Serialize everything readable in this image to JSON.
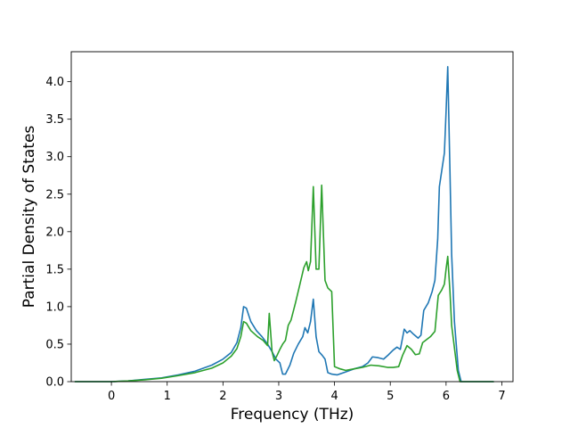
{
  "chart_data": {
    "type": "line",
    "title": "",
    "xlabel": "Frequency (THz)",
    "ylabel": "Partial Density of States",
    "xlim": [
      -0.72,
      7.2
    ],
    "ylim": [
      0.0,
      4.4
    ],
    "xticks": [
      0,
      1,
      2,
      3,
      4,
      5,
      6,
      7
    ],
    "xtick_labels": [
      "0",
      "1",
      "2",
      "3",
      "4",
      "5",
      "6",
      "7"
    ],
    "yticks": [
      0.0,
      0.5,
      1.0,
      1.5,
      2.0,
      2.5,
      3.0,
      3.5,
      4.0
    ],
    "ytick_labels": [
      "0.0",
      "0.5",
      "1.0",
      "1.5",
      "2.0",
      "2.5",
      "3.0",
      "3.5",
      "4.0"
    ],
    "grid": false,
    "series": [
      {
        "color": "#1f77b4",
        "points": [
          [
            -0.65,
            0.0
          ],
          [
            0.0,
            0.0
          ],
          [
            0.3,
            0.01
          ],
          [
            0.6,
            0.03
          ],
          [
            0.9,
            0.05
          ],
          [
            1.2,
            0.09
          ],
          [
            1.5,
            0.14
          ],
          [
            1.8,
            0.22
          ],
          [
            2.0,
            0.3
          ],
          [
            2.15,
            0.39
          ],
          [
            2.25,
            0.52
          ],
          [
            2.32,
            0.72
          ],
          [
            2.37,
            1.0
          ],
          [
            2.42,
            0.98
          ],
          [
            2.5,
            0.8
          ],
          [
            2.6,
            0.68
          ],
          [
            2.7,
            0.6
          ],
          [
            2.8,
            0.5
          ],
          [
            2.88,
            0.4
          ],
          [
            2.95,
            0.3
          ],
          [
            3.02,
            0.25
          ],
          [
            3.07,
            0.1
          ],
          [
            3.12,
            0.1
          ],
          [
            3.2,
            0.22
          ],
          [
            3.27,
            0.38
          ],
          [
            3.35,
            0.5
          ],
          [
            3.43,
            0.6
          ],
          [
            3.47,
            0.72
          ],
          [
            3.52,
            0.65
          ],
          [
            3.57,
            0.8
          ],
          [
            3.62,
            1.1
          ],
          [
            3.67,
            0.6
          ],
          [
            3.72,
            0.4
          ],
          [
            3.78,
            0.35
          ],
          [
            3.83,
            0.3
          ],
          [
            3.88,
            0.12
          ],
          [
            3.95,
            0.1
          ],
          [
            4.05,
            0.09
          ],
          [
            4.2,
            0.13
          ],
          [
            4.35,
            0.17
          ],
          [
            4.5,
            0.2
          ],
          [
            4.6,
            0.25
          ],
          [
            4.68,
            0.33
          ],
          [
            4.78,
            0.32
          ],
          [
            4.88,
            0.3
          ],
          [
            4.97,
            0.36
          ],
          [
            5.05,
            0.42
          ],
          [
            5.12,
            0.46
          ],
          [
            5.18,
            0.43
          ],
          [
            5.25,
            0.7
          ],
          [
            5.3,
            0.65
          ],
          [
            5.35,
            0.68
          ],
          [
            5.42,
            0.63
          ],
          [
            5.5,
            0.58
          ],
          [
            5.55,
            0.62
          ],
          [
            5.6,
            0.95
          ],
          [
            5.68,
            1.05
          ],
          [
            5.75,
            1.2
          ],
          [
            5.8,
            1.35
          ],
          [
            5.85,
            1.9
          ],
          [
            5.88,
            2.6
          ],
          [
            5.93,
            2.85
          ],
          [
            5.97,
            3.05
          ],
          [
            6.0,
            3.6
          ],
          [
            6.03,
            4.2
          ],
          [
            6.07,
            2.8
          ],
          [
            6.1,
            1.7
          ],
          [
            6.15,
            0.8
          ],
          [
            6.22,
            0.15
          ],
          [
            6.27,
            0.0
          ],
          [
            6.85,
            0.0
          ]
        ]
      },
      {
        "color": "#2ca02c",
        "points": [
          [
            -0.65,
            0.0
          ],
          [
            0.0,
            0.0
          ],
          [
            0.3,
            0.01
          ],
          [
            0.6,
            0.025
          ],
          [
            0.9,
            0.045
          ],
          [
            1.2,
            0.08
          ],
          [
            1.5,
            0.12
          ],
          [
            1.8,
            0.18
          ],
          [
            2.0,
            0.25
          ],
          [
            2.15,
            0.34
          ],
          [
            2.25,
            0.44
          ],
          [
            2.32,
            0.6
          ],
          [
            2.37,
            0.8
          ],
          [
            2.42,
            0.78
          ],
          [
            2.5,
            0.68
          ],
          [
            2.62,
            0.6
          ],
          [
            2.72,
            0.55
          ],
          [
            2.8,
            0.48
          ],
          [
            2.83,
            0.91
          ],
          [
            2.88,
            0.4
          ],
          [
            2.92,
            0.28
          ],
          [
            2.97,
            0.35
          ],
          [
            3.02,
            0.43
          ],
          [
            3.07,
            0.5
          ],
          [
            3.12,
            0.55
          ],
          [
            3.17,
            0.75
          ],
          [
            3.22,
            0.82
          ],
          [
            3.3,
            1.05
          ],
          [
            3.38,
            1.3
          ],
          [
            3.45,
            1.52
          ],
          [
            3.5,
            1.6
          ],
          [
            3.53,
            1.48
          ],
          [
            3.57,
            1.6
          ],
          [
            3.62,
            2.6
          ],
          [
            3.67,
            1.5
          ],
          [
            3.72,
            1.5
          ],
          [
            3.77,
            2.62
          ],
          [
            3.83,
            1.35
          ],
          [
            3.88,
            1.25
          ],
          [
            3.95,
            1.2
          ],
          [
            4.0,
            0.2
          ],
          [
            4.1,
            0.17
          ],
          [
            4.2,
            0.15
          ],
          [
            4.35,
            0.17
          ],
          [
            4.5,
            0.19
          ],
          [
            4.65,
            0.22
          ],
          [
            4.8,
            0.21
          ],
          [
            4.95,
            0.19
          ],
          [
            5.05,
            0.19
          ],
          [
            5.15,
            0.2
          ],
          [
            5.22,
            0.35
          ],
          [
            5.3,
            0.48
          ],
          [
            5.38,
            0.43
          ],
          [
            5.45,
            0.36
          ],
          [
            5.52,
            0.37
          ],
          [
            5.58,
            0.52
          ],
          [
            5.65,
            0.56
          ],
          [
            5.72,
            0.6
          ],
          [
            5.8,
            0.67
          ],
          [
            5.86,
            1.15
          ],
          [
            5.92,
            1.22
          ],
          [
            5.97,
            1.3
          ],
          [
            6.0,
            1.5
          ],
          [
            6.03,
            1.67
          ],
          [
            6.07,
            1.2
          ],
          [
            6.1,
            0.75
          ],
          [
            6.15,
            0.45
          ],
          [
            6.2,
            0.15
          ],
          [
            6.25,
            0.0
          ],
          [
            6.85,
            0.0
          ]
        ]
      }
    ]
  }
}
